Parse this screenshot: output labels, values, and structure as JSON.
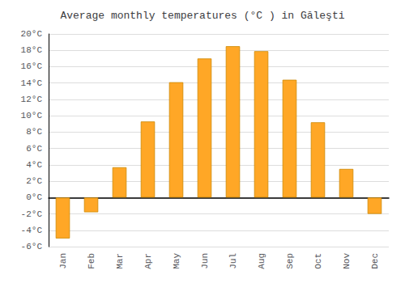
{
  "chart_data": {
    "type": "bar",
    "title": "Average monthly temperatures (°C ) in Găleşti",
    "categories": [
      "Jan",
      "Feb",
      "Mar",
      "Apr",
      "May",
      "Jun",
      "Jul",
      "Aug",
      "Sep",
      "Oct",
      "Nov",
      "Dec"
    ],
    "values": [
      -5.0,
      -1.8,
      3.7,
      9.3,
      14.1,
      17.0,
      18.5,
      17.9,
      14.4,
      9.2,
      3.5,
      -2.0
    ],
    "color": "#FFA726",
    "ylim": [
      -6,
      20
    ],
    "yticks": [
      {
        "value": -6,
        "label": "-6°C"
      },
      {
        "value": -4,
        "label": "-4°C"
      },
      {
        "value": -2,
        "label": "-2°C"
      },
      {
        "value": 0,
        "label": "0°C"
      },
      {
        "value": 2,
        "label": "2°C"
      },
      {
        "value": 4,
        "label": "4°C"
      },
      {
        "value": 6,
        "label": "6°C"
      },
      {
        "value": 8,
        "label": "8°C"
      },
      {
        "value": 10,
        "label": "10°C"
      },
      {
        "value": 12,
        "label": "12°C"
      },
      {
        "value": 14,
        "label": "14°C"
      },
      {
        "value": 16,
        "label": "16°C"
      },
      {
        "value": 18,
        "label": "18°C"
      },
      {
        "value": 20,
        "label": "20°C"
      }
    ],
    "grid": true
  }
}
